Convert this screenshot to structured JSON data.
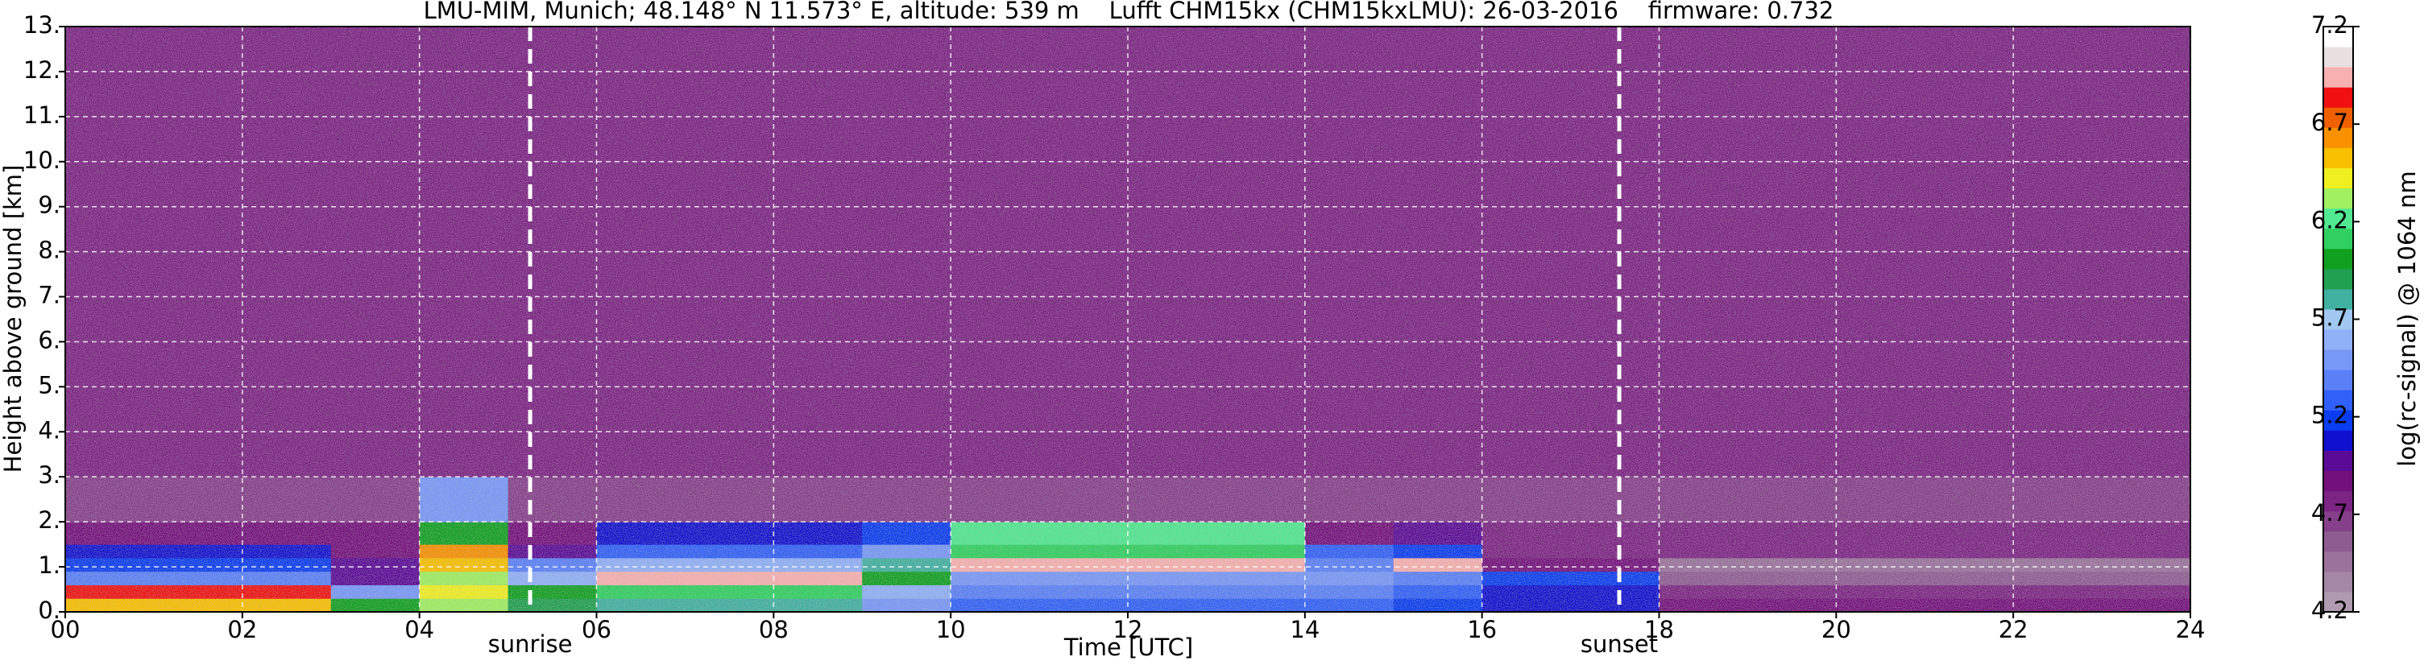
{
  "chart_data": {
    "type": "heatmap",
    "title": "LMU-MIM, Munich; 48.148° N 11.573° E, altitude: 539 m    Lufft CHM15kx (CHM15kxLMU): 26-03-2016    firmware: 0.732",
    "x_label": "Time [UTC]",
    "y_label": "Height above ground [km]",
    "colorbar_label": "log(rc-signal) @ 1064 nm",
    "xlim": [
      0,
      24
    ],
    "ylim": [
      0,
      13
    ],
    "xticks": [
      {
        "value": 0,
        "label": "00"
      },
      {
        "value": 2,
        "label": "02"
      },
      {
        "value": 4,
        "label": "04"
      },
      {
        "value": 6,
        "label": "06"
      },
      {
        "value": 8,
        "label": "08"
      },
      {
        "value": 10,
        "label": "10"
      },
      {
        "value": 12,
        "label": "12"
      },
      {
        "value": 14,
        "label": "14"
      },
      {
        "value": 16,
        "label": "16"
      },
      {
        "value": 18,
        "label": "18"
      },
      {
        "value": 20,
        "label": "20"
      },
      {
        "value": 22,
        "label": "22"
      },
      {
        "value": 24,
        "label": "24"
      }
    ],
    "yticks": [
      {
        "value": 0,
        "label": "0."
      },
      {
        "value": 1,
        "label": "1."
      },
      {
        "value": 2,
        "label": "2."
      },
      {
        "value": 3,
        "label": "3."
      },
      {
        "value": 4,
        "label": "4."
      },
      {
        "value": 5,
        "label": "5."
      },
      {
        "value": 6,
        "label": "6."
      },
      {
        "value": 7,
        "label": "7."
      },
      {
        "value": 8,
        "label": "8."
      },
      {
        "value": 9,
        "label": "9."
      },
      {
        "value": 10,
        "label": "10."
      },
      {
        "value": 11,
        "label": "11."
      },
      {
        "value": 12,
        "label": "12."
      },
      {
        "value": 13,
        "label": "13."
      }
    ],
    "grid": true,
    "x_bins": [
      0,
      1,
      2,
      3,
      4,
      5,
      6,
      7,
      8,
      9,
      10,
      11,
      12,
      13,
      14,
      15,
      16,
      17,
      18,
      19,
      20,
      21,
      22,
      23,
      24
    ],
    "y_bins": [
      0,
      0.3,
      0.6,
      0.9,
      1.2,
      1.5,
      2,
      3,
      13
    ],
    "z": [
      [
        6.5,
        6.5,
        6.5,
        6.0,
        6.3,
        5.9,
        5.8,
        5.8,
        5.8,
        5.5,
        5.3,
        5.3,
        5.3,
        5.3,
        5.3,
        5.2,
        5.1,
        5.1,
        4.9,
        4.9,
        4.9,
        4.9,
        4.9,
        4.9
      ],
      [
        6.8,
        6.8,
        6.8,
        5.5,
        6.4,
        6.0,
        6.1,
        6.1,
        6.1,
        5.6,
        5.4,
        5.4,
        5.4,
        5.4,
        5.4,
        5.3,
        5.1,
        5.1,
        4.8,
        4.8,
        4.8,
        4.8,
        4.8,
        4.8
      ],
      [
        5.4,
        5.4,
        5.4,
        5.0,
        6.3,
        5.6,
        6.9,
        6.9,
        6.9,
        6.0,
        5.5,
        5.5,
        5.5,
        5.5,
        5.5,
        5.4,
        5.2,
        5.2,
        4.6,
        4.6,
        4.6,
        4.6,
        4.6,
        4.6
      ],
      [
        5.2,
        5.2,
        5.2,
        5.0,
        6.5,
        5.4,
        5.6,
        5.6,
        5.6,
        5.8,
        6.9,
        6.9,
        6.9,
        6.9,
        5.4,
        6.9,
        4.9,
        4.9,
        4.5,
        4.5,
        4.5,
        4.5,
        4.5,
        4.5
      ],
      [
        5.1,
        5.1,
        5.1,
        4.9,
        6.6,
        5.0,
        5.3,
        5.3,
        5.3,
        5.5,
        6.1,
        6.1,
        6.1,
        6.1,
        5.3,
        5.2,
        4.8,
        4.8,
        4.8,
        4.8,
        4.8,
        4.8,
        4.8,
        4.8
      ],
      [
        4.9,
        4.9,
        4.9,
        4.9,
        6.0,
        4.9,
        5.1,
        5.1,
        5.1,
        5.2,
        6.2,
        6.2,
        6.2,
        6.2,
        4.9,
        5.0,
        4.8,
        4.8,
        4.8,
        4.8,
        4.8,
        4.8,
        4.8,
        4.8
      ],
      [
        4.7,
        4.7,
        4.7,
        4.7,
        5.5,
        4.7,
        4.7,
        4.7,
        4.7,
        4.7,
        4.7,
        4.7,
        4.7,
        4.7,
        4.7,
        4.7,
        4.7,
        4.7,
        4.7,
        4.7,
        4.7,
        4.7,
        4.7,
        4.7
      ],
      [
        4.8,
        4.8,
        4.8,
        4.8,
        4.8,
        4.8,
        4.8,
        4.8,
        4.8,
        4.8,
        4.8,
        4.8,
        4.8,
        4.8,
        4.8,
        4.8,
        4.8,
        4.8,
        4.8,
        4.8,
        4.8,
        4.8,
        4.8,
        4.8
      ]
    ],
    "zlim": [
      4.2,
      7.2
    ],
    "zticks": [
      4.2,
      4.7,
      5.2,
      5.7,
      6.2,
      6.7,
      7.2
    ],
    "colormap": [
      "#b09ab0",
      "#a487a4",
      "#9a729c",
      "#8f5c92",
      "#863f8a",
      "#7c2483",
      "#74107c",
      "#5a0a96",
      "#1010d0",
      "#0a3cf0",
      "#3060f8",
      "#5a80f8",
      "#7898f8",
      "#90b0f8",
      "#a0c8f0",
      "#40b0a0",
      "#20a050",
      "#10a020",
      "#30d060",
      "#50e890",
      "#a0f060",
      "#f0f020",
      "#f8c000",
      "#f89000",
      "#f06000",
      "#f01010",
      "#f8b0b0",
      "#e8e0e0",
      "#ffffff"
    ],
    "annotations": [
      {
        "text": "sunrise",
        "x": 5.25
      },
      {
        "text": "sunset",
        "x": 17.55
      }
    ]
  }
}
